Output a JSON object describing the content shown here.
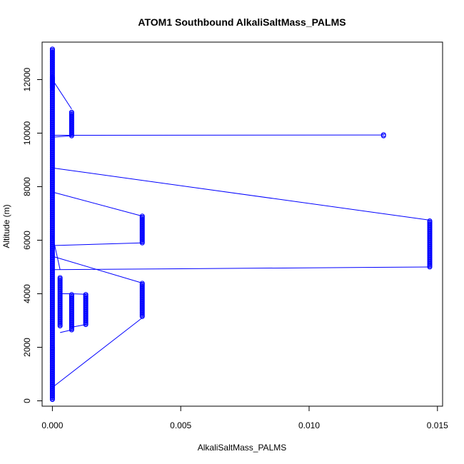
{
  "chart_data": {
    "type": "scatter",
    "title": "ATOM1 Southbound AlkaliSaltMass_PALMS",
    "xlabel": "AlkaliSaltMass_PALMS",
    "ylabel": "Altitude (m)",
    "xlim": [
      -0.0004,
      0.0152
    ],
    "ylim": [
      -200,
      13400
    ],
    "x_ticks": [
      0,
      0.005,
      0.01,
      0.015
    ],
    "x_tick_labels": [
      "0.000",
      "0.005",
      "0.010",
      "0.015"
    ],
    "y_ticks": [
      0,
      2000,
      4000,
      6000,
      8000,
      10000,
      12000
    ],
    "y_tick_labels": [
      "0",
      "2000",
      "4000",
      "6000",
      "8000",
      "10000",
      "12000"
    ],
    "grid": false,
    "legend": "none",
    "series_color": "#0000ff",
    "marker": "open-circle",
    "connect_points": true,
    "segments": [
      {
        "x": 0,
        "y": [
          50,
          2000
        ]
      },
      {
        "x": 0,
        "y": [
          2000,
          12100
        ]
      },
      {
        "x": 0.00075,
        "y": [
          10800,
          9900
        ]
      },
      {
        "x": 0.00075,
        "y": [
          2650,
          4000
        ]
      },
      {
        "x": 0.0003,
        "y": [
          2800,
          4600
        ]
      },
      {
        "x": 0.0013,
        "y": [
          2850,
          3980
        ]
      },
      {
        "x": 0.0035,
        "y": [
          3150,
          4400
        ]
      },
      {
        "x": 0.0035,
        "y": [
          5900,
          6900
        ]
      },
      {
        "x": 0.0129,
        "y": [
          9900,
          9950
        ]
      },
      {
        "x": 0.0147,
        "y": [
          5000,
          6750
        ]
      },
      {
        "x": 0,
        "y": [
          11700,
          13150
        ]
      }
    ],
    "links": [
      {
        "x": [
          0,
          0.00075
        ],
        "y": [
          12000,
          10900
        ]
      },
      {
        "x": [
          0,
          0.0129
        ],
        "y": [
          9920,
          9930
        ]
      },
      {
        "x": [
          0,
          0.00075
        ],
        "y": [
          9850,
          9900
        ]
      },
      {
        "x": [
          0,
          0.0147
        ],
        "y": [
          8700,
          6750
        ]
      },
      {
        "x": [
          0,
          0.0035
        ],
        "y": [
          7800,
          6900
        ]
      },
      {
        "x": [
          0.0035,
          0
        ],
        "y": [
          5900,
          5800
        ]
      },
      {
        "x": [
          0,
          0.0035
        ],
        "y": [
          5400,
          4400
        ]
      },
      {
        "x": [
          0,
          0.0147
        ],
        "y": [
          4900,
          5000
        ]
      },
      {
        "x": [
          0.0003,
          0.00075
        ],
        "y": [
          4000,
          4000
        ]
      },
      {
        "x": [
          0.00075,
          0.0013
        ],
        "y": [
          4000,
          3980
        ]
      },
      {
        "x": [
          0.0013,
          0.00075
        ],
        "y": [
          2850,
          2750
        ]
      },
      {
        "x": [
          0.00075,
          0.0003
        ],
        "y": [
          2650,
          2550
        ]
      },
      {
        "x": [
          0,
          0.0035
        ],
        "y": [
          500,
          3100
        ]
      },
      {
        "x": [
          0,
          0.0003
        ],
        "y": [
          6200,
          4900
        ]
      }
    ]
  }
}
